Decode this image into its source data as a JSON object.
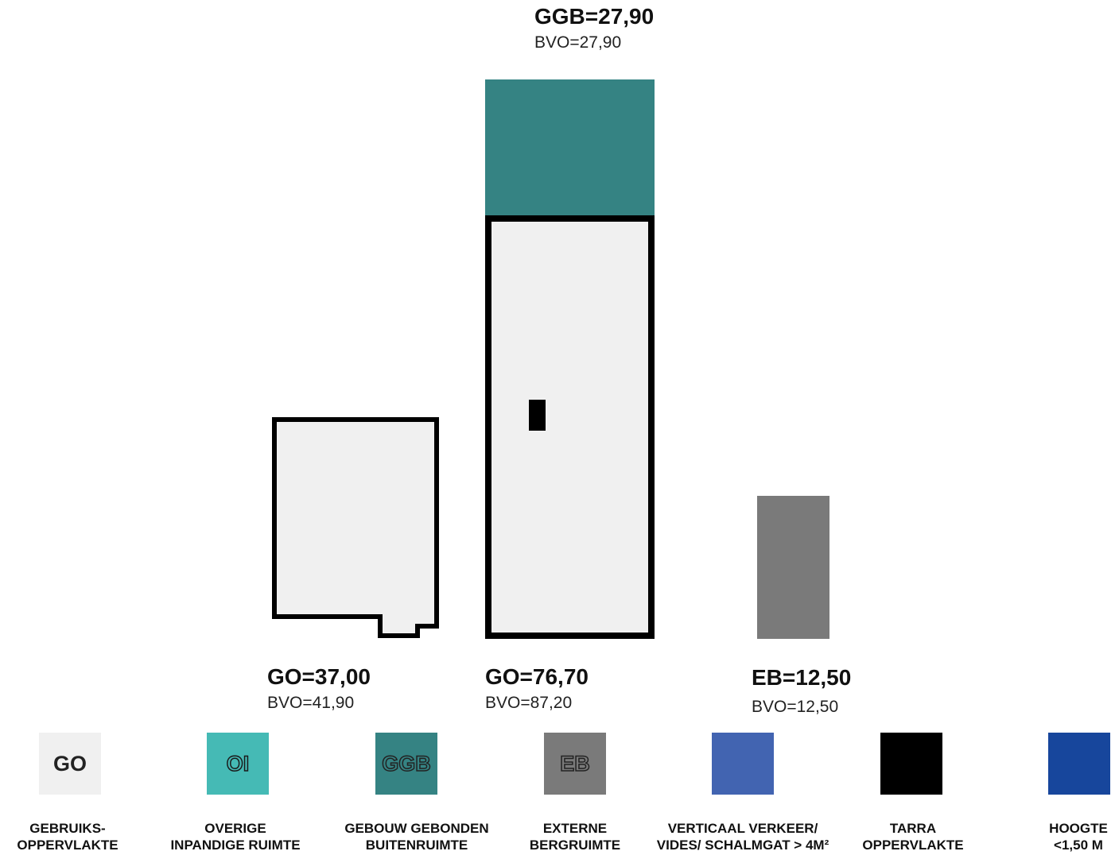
{
  "areas": [
    {
      "id": "ggb",
      "main": "GGB=27,90",
      "sub": "BVO=27,90"
    },
    {
      "id": "go1",
      "main": "GO=37,00",
      "sub": "BVO=41,90"
    },
    {
      "id": "go2",
      "main": "GO=76,70",
      "sub": "BVO=87,20"
    },
    {
      "id": "eb",
      "main": "EB=12,50",
      "sub": "BVO=12,50"
    }
  ],
  "legend": [
    {
      "code": "GO",
      "line1": "GEBRUIKS-",
      "line2": "OPPERVLAKTE",
      "color": "#f0f0f0"
    },
    {
      "code": "OI",
      "line1": "OVERIGE",
      "line2": "INPANDIGE RUIMTE",
      "color": "#45bab5"
    },
    {
      "code": "GGB",
      "line1": "GEBOUW GEBONDEN",
      "line2": "BUITENRUIMTE",
      "color": "#358383"
    },
    {
      "code": "EB",
      "line1": "EXTERNE",
      "line2": "BERGRUIMTE",
      "color": "#7a7a7a"
    },
    {
      "code": "",
      "line1": "VERTICAAL VERKEER/",
      "line2": "VIDES/ SCHALMGAT > 4M²",
      "color": "#4264b1"
    },
    {
      "code": "",
      "line1": "TARRA",
      "line2": "OPPERVLAKTE",
      "color": "#000000"
    },
    {
      "code": "",
      "line1": "HOOGTE",
      "line2": "<1,50 M",
      "color": "#17469c"
    }
  ]
}
